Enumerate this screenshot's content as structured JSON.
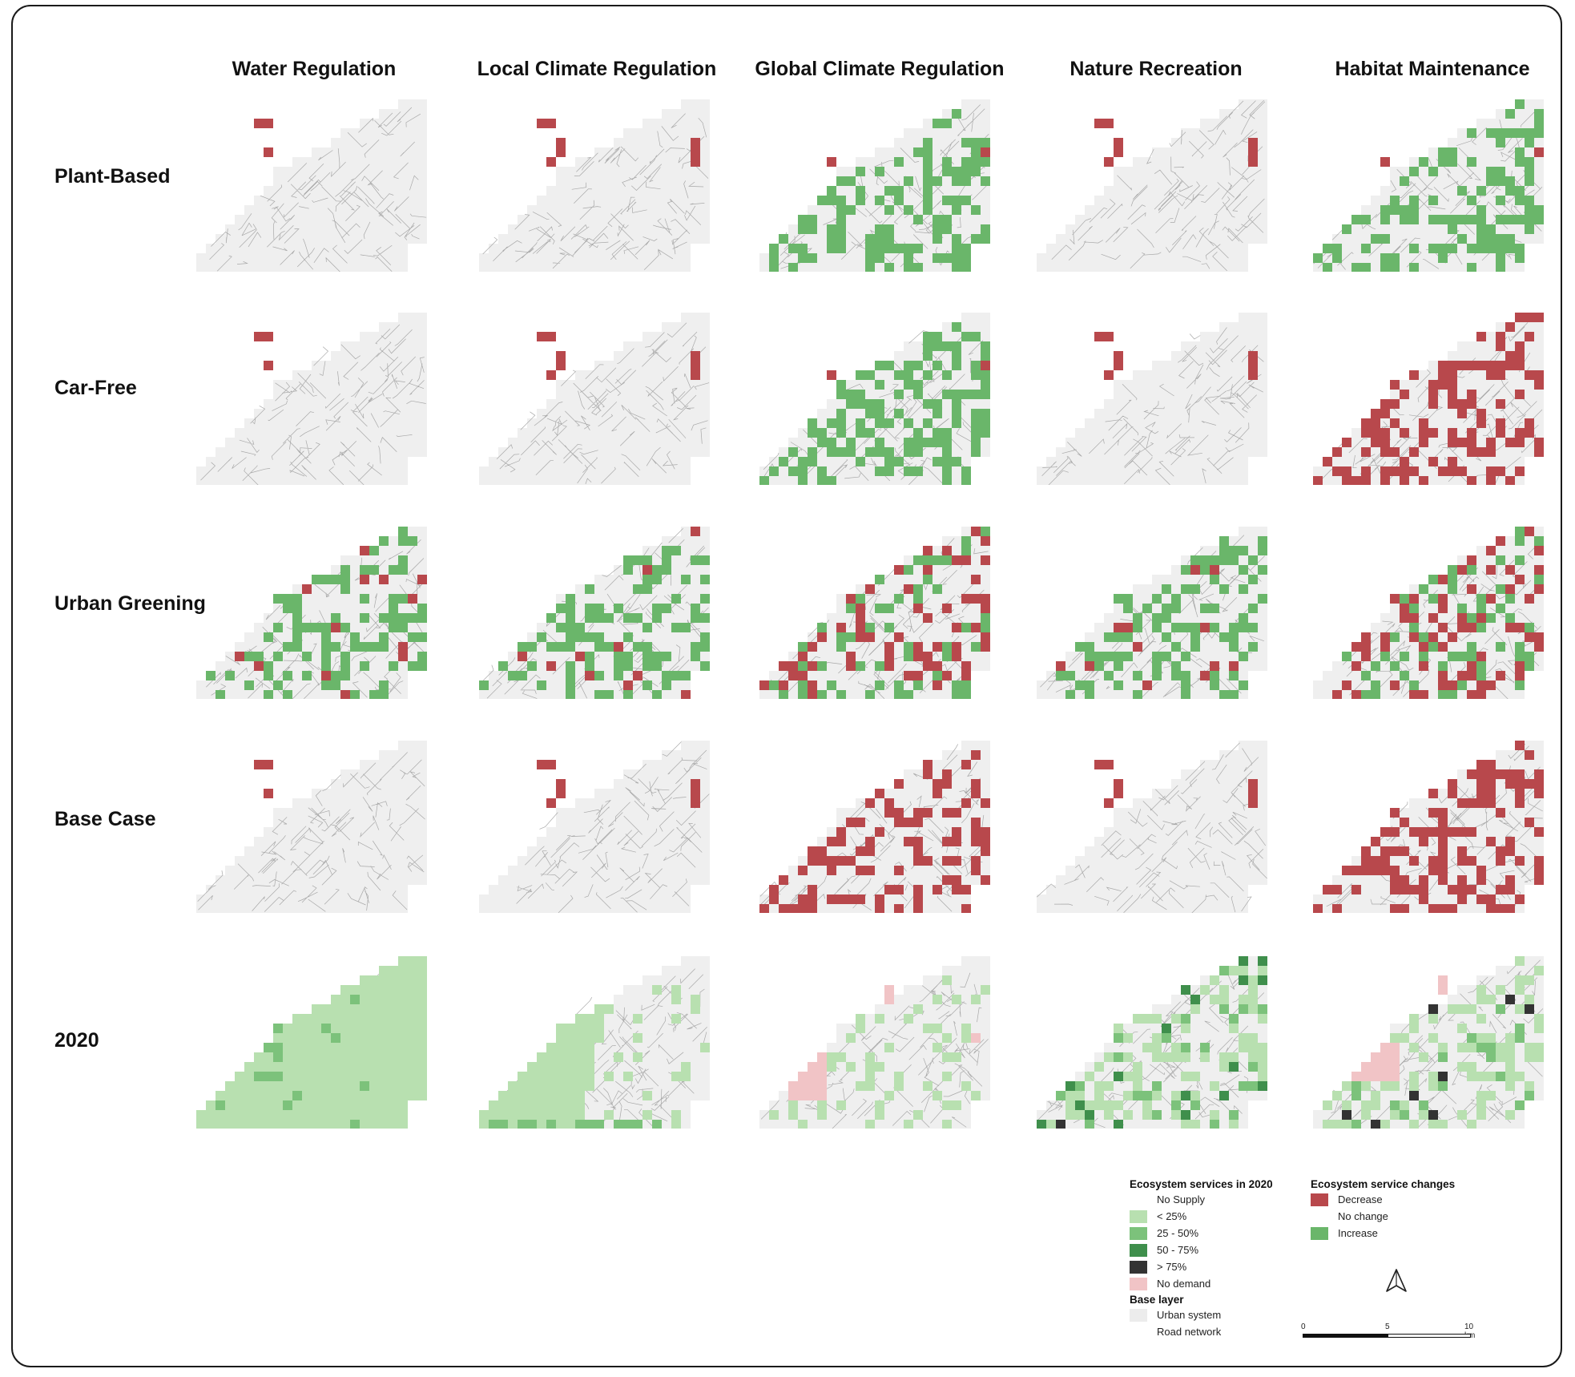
{
  "columns": [
    "Water Regulation",
    "Local Climate Regulation",
    "Global Climate Regulation",
    "Nature Recreation",
    "Habitat Maintenance"
  ],
  "rows": [
    "Plant-Based",
    "Car-Free",
    "Urban Greening",
    "Base Case",
    "2020"
  ],
  "cell_patterns": [
    [
      "few-red",
      "few-red-east",
      "mostly-green",
      "few-red-east",
      "mostly-green"
    ],
    [
      "few-red",
      "few-red-east",
      "mostly-green",
      "few-red-east",
      "mostly-red"
    ],
    [
      "green-with-red",
      "green-with-red",
      "red-and-green",
      "green-with-red",
      "red-and-green"
    ],
    [
      "few-red",
      "few-red-east",
      "mostly-red",
      "few-red-east",
      "mostly-red"
    ],
    [
      "supply-graded",
      "supply-west",
      "supply-sparse",
      "supply-mixed",
      "supply-dark"
    ]
  ],
  "legend": {
    "supply_title": "Ecosystem services in 2020",
    "supply_items": [
      {
        "label": "No Supply",
        "color": "#ffffff"
      },
      {
        "label": "< 25%",
        "color": "#b8e0b0"
      },
      {
        "label": "25 - 50%",
        "color": "#7cc27b"
      },
      {
        "label": "50 - 75%",
        "color": "#3f8f4c"
      },
      {
        "label": "> 75%",
        "color": "#333333"
      },
      {
        "label": "No demand",
        "color": "#f1c4c6"
      }
    ],
    "base_title": "Base layer",
    "base_items": [
      {
        "label": "Urban system",
        "color": "#ececec"
      },
      {
        "label": "Road network",
        "color": "#ffffff"
      }
    ],
    "change_title": "Ecosystem service changes",
    "change_items": [
      {
        "label": "Decrease",
        "color": "#b8484c"
      },
      {
        "label": "No change",
        "color": "#ffffff"
      },
      {
        "label": "Increase",
        "color": "#6ab66a"
      }
    ]
  },
  "scale": {
    "labels": [
      "0",
      "5",
      "10 km"
    ]
  },
  "colors": {
    "decrease": "#b8484c",
    "increase": "#6ab66a",
    "base": "#efefef",
    "road": "#a8a8a8"
  }
}
